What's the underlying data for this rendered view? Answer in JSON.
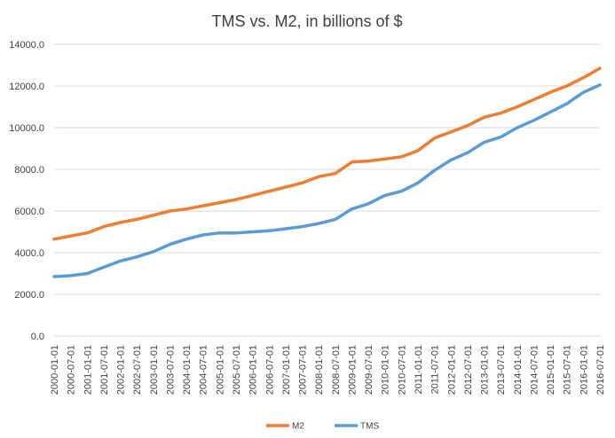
{
  "chart_data": {
    "type": "line",
    "title": "TMS vs. M2, in billions of $",
    "xlabel": "",
    "ylabel": "",
    "ylim": [
      0,
      14000
    ],
    "yticks": [
      "0.0",
      "2000.0",
      "4000.0",
      "6000.0",
      "8000.0",
      "10000.0",
      "12000.0",
      "14000.0"
    ],
    "grid": true,
    "legend_position": "bottom",
    "xtick_labels": [
      "2000-01-01",
      "2000-07-01",
      "2001-01-01",
      "2001-07-01",
      "2002-01-01",
      "2002-07-01",
      "2003-01-01",
      "2003-07-01",
      "2004-01-01",
      "2004-07-01",
      "2005-01-01",
      "2005-07-01",
      "2006-01-01",
      "2006-07-01",
      "2007-01-01",
      "2007-07-01",
      "2008-01-01",
      "2008-07-01",
      "2009-01-01",
      "2009-07-01",
      "2010-01-01",
      "2010-07-01",
      "2011-01-01",
      "2011-07-01",
      "2012-01-01",
      "2012-07-01",
      "2013-01-01",
      "2013-07-01",
      "2014-01-01",
      "2014-07-01",
      "2015-01-01",
      "2015-07-01",
      "2016-01-01",
      "2016-07-01"
    ],
    "x": [
      "2000-01-01",
      "2000-07-01",
      "2001-01-01",
      "2001-07-01",
      "2002-01-01",
      "2002-07-01",
      "2003-01-01",
      "2003-07-01",
      "2004-01-01",
      "2004-07-01",
      "2005-01-01",
      "2005-07-01",
      "2006-01-01",
      "2006-07-01",
      "2007-01-01",
      "2007-07-01",
      "2008-01-01",
      "2008-07-01",
      "2009-01-01",
      "2009-07-01",
      "2010-01-01",
      "2010-07-01",
      "2011-01-01",
      "2011-07-01",
      "2012-01-01",
      "2012-07-01",
      "2013-01-01",
      "2013-07-01",
      "2014-01-01",
      "2014-07-01",
      "2015-01-01",
      "2015-07-01",
      "2016-01-01",
      "2016-07-01"
    ],
    "series": [
      {
        "name": "M2",
        "color": "#ed7d31",
        "values": [
          4650,
          4800,
          4950,
          5250,
          5450,
          5600,
          5800,
          6000,
          6100,
          6250,
          6400,
          6550,
          6750,
          6950,
          7150,
          7350,
          7650,
          7800,
          8350,
          8400,
          8500,
          8600,
          8900,
          9500,
          9800,
          10100,
          10500,
          10700,
          11000,
          11350,
          11700,
          12000,
          12400,
          12850
        ]
      },
      {
        "name": "TMS",
        "color": "#5b9bd5",
        "values": [
          2850,
          2900,
          3000,
          3300,
          3600,
          3800,
          4050,
          4400,
          4650,
          4850,
          4950,
          4950,
          5000,
          5050,
          5150,
          5250,
          5400,
          5600,
          6100,
          6350,
          6750,
          6950,
          7350,
          7950,
          8450,
          8800,
          9300,
          9550,
          10000,
          10350,
          10750,
          11150,
          11700,
          12050
        ]
      }
    ]
  }
}
